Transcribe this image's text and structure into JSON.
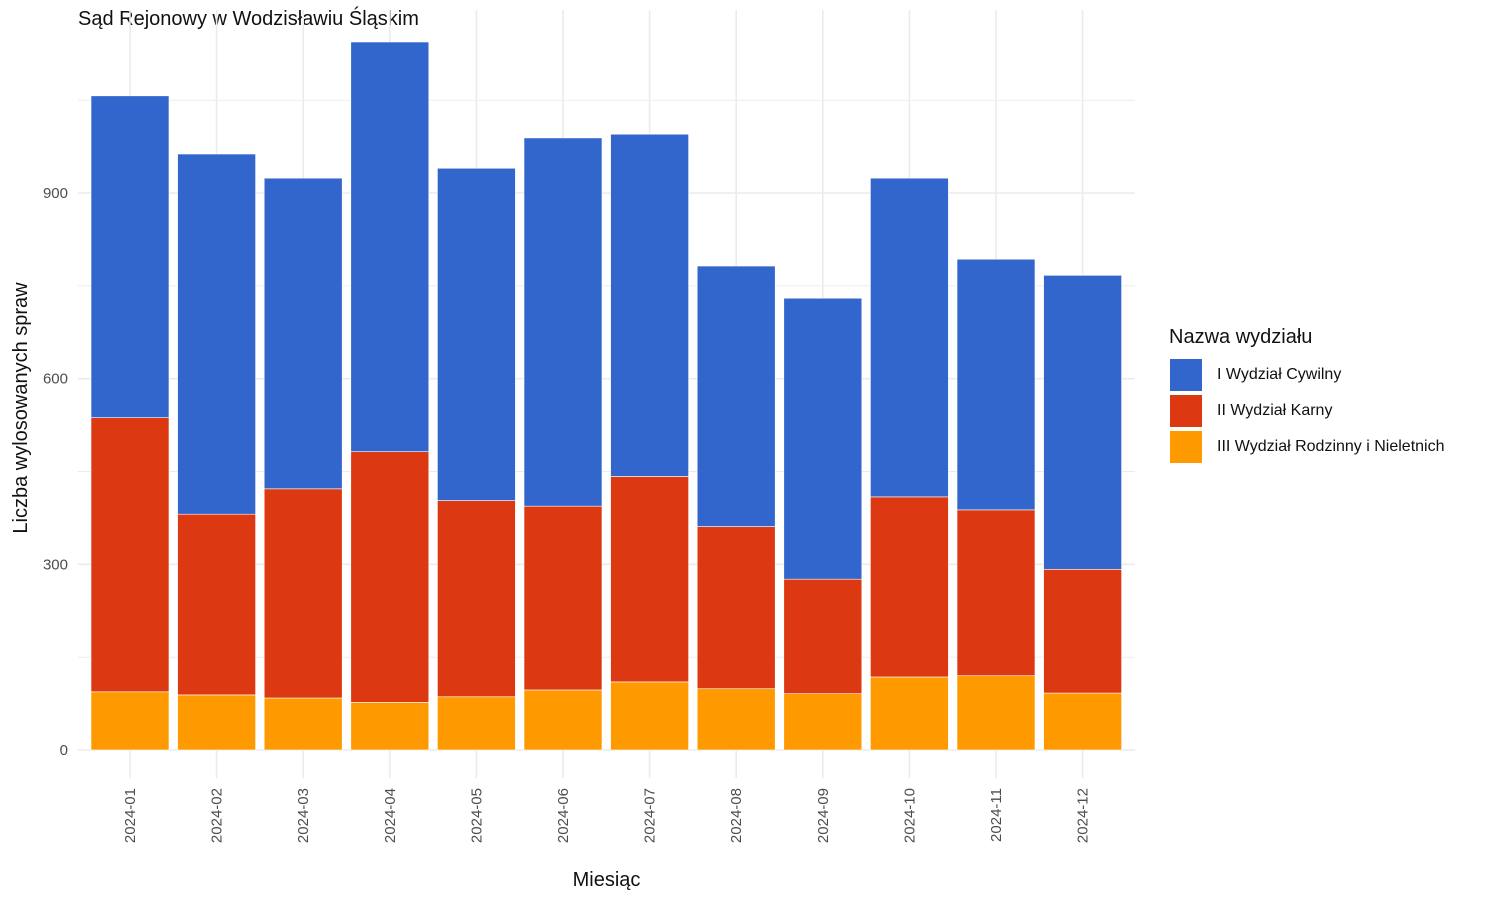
{
  "chart_data": {
    "type": "bar",
    "stacked": true,
    "title": "Sąd Rejonowy w Wodzisławiu Śląskim",
    "xlabel": "Miesiąc",
    "ylabel": "Liczba wylosowanych spraw",
    "ylim": [
      0,
      1200
    ],
    "yticks": [
      0,
      300,
      600,
      900
    ],
    "grid": true,
    "legend_title": "Nazwa wydziału",
    "legend_position": "right",
    "categories": [
      "2024-01",
      "2024-02",
      "2024-03",
      "2024-04",
      "2024-05",
      "2024-06",
      "2024-07",
      "2024-08",
      "2024-09",
      "2024-10",
      "2024-11",
      "2024-12"
    ],
    "series": [
      {
        "name": "III Wydział Rodzinny i Nieletnich",
        "color": "#FF9900",
        "values": [
          94,
          89,
          84,
          77,
          86,
          97,
          110,
          99,
          91,
          118,
          120,
          92
        ]
      },
      {
        "name": "II Wydział Karny",
        "color": "#DC3912",
        "values": [
          443,
          292,
          338,
          405,
          317,
          297,
          332,
          262,
          185,
          291,
          268,
          200
        ]
      },
      {
        "name": "I Wydział Cywilny",
        "color": "#3366CC",
        "values": [
          520,
          582,
          502,
          662,
          537,
          595,
          553,
          421,
          454,
          515,
          405,
          475
        ]
      }
    ]
  }
}
